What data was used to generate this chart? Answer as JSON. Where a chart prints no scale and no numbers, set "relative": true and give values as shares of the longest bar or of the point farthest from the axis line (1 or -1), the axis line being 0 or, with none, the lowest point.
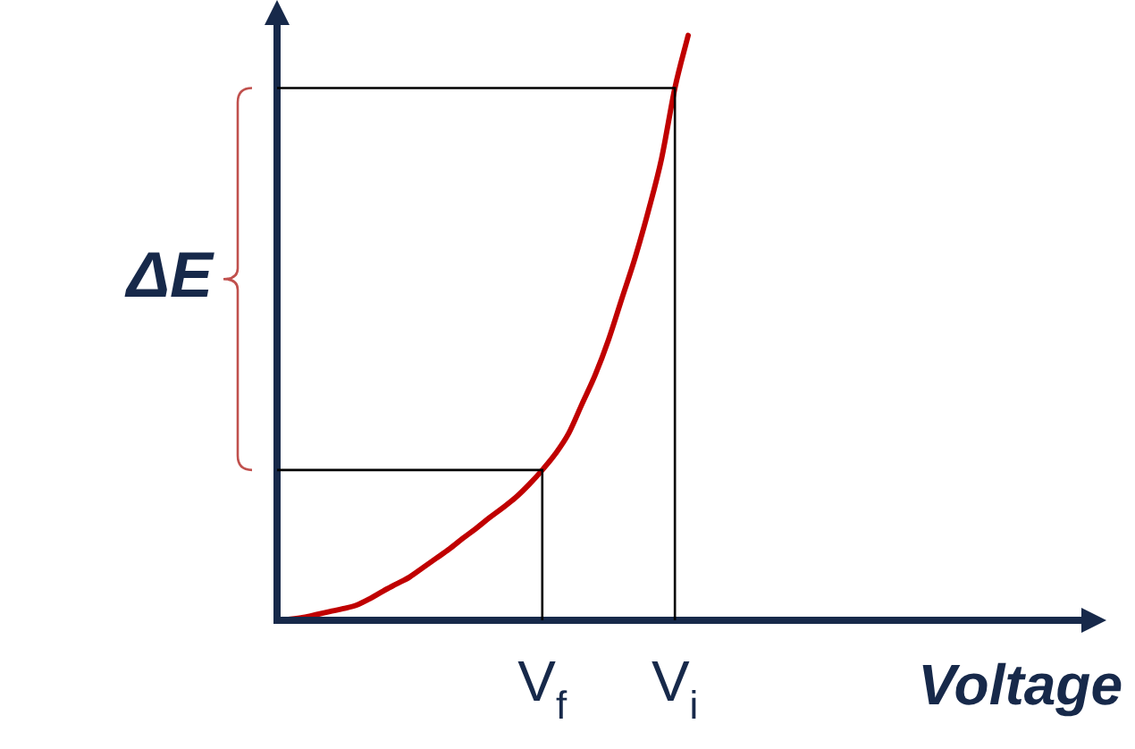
{
  "chart_data": {
    "type": "line",
    "relative": true,
    "xlabel": "Voltage",
    "annotations": [
      "ΔE"
    ],
    "legend": false,
    "grid": false,
    "marker": "none",
    "tick_labels": "x",
    "ref_lines": [
      {
        "axis": "y",
        "value": 0.257,
        "color": "#000000"
      },
      {
        "axis": "y",
        "value": 0.91,
        "color": "#000000"
      }
    ],
    "categories": [
      null,
      null,
      null,
      null,
      null,
      null,
      null,
      null,
      null,
      null,
      null,
      null,
      null,
      null,
      null,
      null,
      null,
      null,
      null,
      null,
      "V$_{f}$",
      null,
      null,
      null,
      null,
      null,
      null,
      null,
      null,
      null,
      "V$_{i}$",
      null,
      null,
      null,
      null,
      null,
      null,
      null,
      null,
      null,
      null,
      null,
      null,
      null,
      null,
      null,
      null,
      null,
      null,
      null,
      null,
      null,
      null,
      null,
      null,
      null,
      null,
      null,
      null,
      null,
      null,
      null,
      null
    ],
    "series": [
      {
        "color": "#c00000",
        "values": [
          0,
          0.002,
          0.005,
          0.01,
          0.015,
          0.02,
          0.026,
          0.037,
          0.05,
          0.062,
          0.074,
          0.09,
          0.106,
          0.122,
          0.14,
          0.157,
          0.175,
          0.192,
          0.21,
          0.232,
          0.257,
          0.285,
          0.32,
          0.37,
          0.42,
          0.48,
          0.55,
          0.62,
          0.7,
          0.79,
          0.91,
          1,
          null,
          null,
          null,
          null,
          null,
          null,
          null,
          null,
          null,
          null,
          null,
          null,
          null,
          null,
          null,
          null,
          null,
          null,
          null,
          null,
          null,
          null,
          null,
          null,
          null,
          null,
          null,
          null,
          null,
          null,
          null
        ]
      }
    ]
  }
}
